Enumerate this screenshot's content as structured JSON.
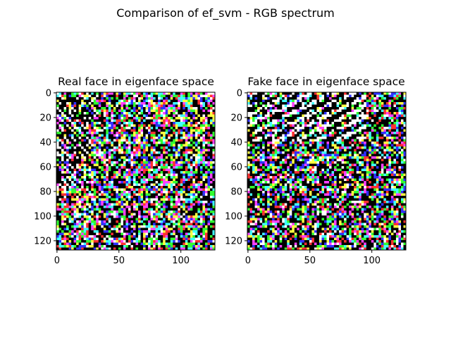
{
  "figure": {
    "title": "Comparison of ef_svm - RGB spectrum"
  },
  "chart_data": [
    {
      "type": "heatmap",
      "title": "Real face in eigenface space",
      "image_size": [
        128,
        128
      ],
      "x_ticks": [
        0,
        50,
        100
      ],
      "y_ticks": [
        0,
        20,
        40,
        60,
        80,
        100,
        120
      ],
      "xlim": [
        -0.5,
        127.5
      ],
      "ylim": [
        127.5,
        -0.5
      ],
      "description_colors": [
        "#000000",
        "#ffffff",
        "#ff3030",
        "#30ff30",
        "#3030ff",
        "#ffff40",
        "#ff40ff",
        "#40ffff"
      ]
    },
    {
      "type": "heatmap",
      "title": "Fake face in eigenface space",
      "image_size": [
        128,
        128
      ],
      "x_ticks": [
        0,
        50,
        100
      ],
      "y_ticks": [
        0,
        20,
        40,
        60,
        80,
        100,
        120
      ],
      "xlim": [
        -0.5,
        127.5
      ],
      "ylim": [
        127.5,
        -0.5
      ],
      "description_colors": [
        "#000000",
        "#ffffff",
        "#ff3030",
        "#30ff30",
        "#3030ff",
        "#ffff40",
        "#ff40ff",
        "#40ffff"
      ]
    }
  ]
}
